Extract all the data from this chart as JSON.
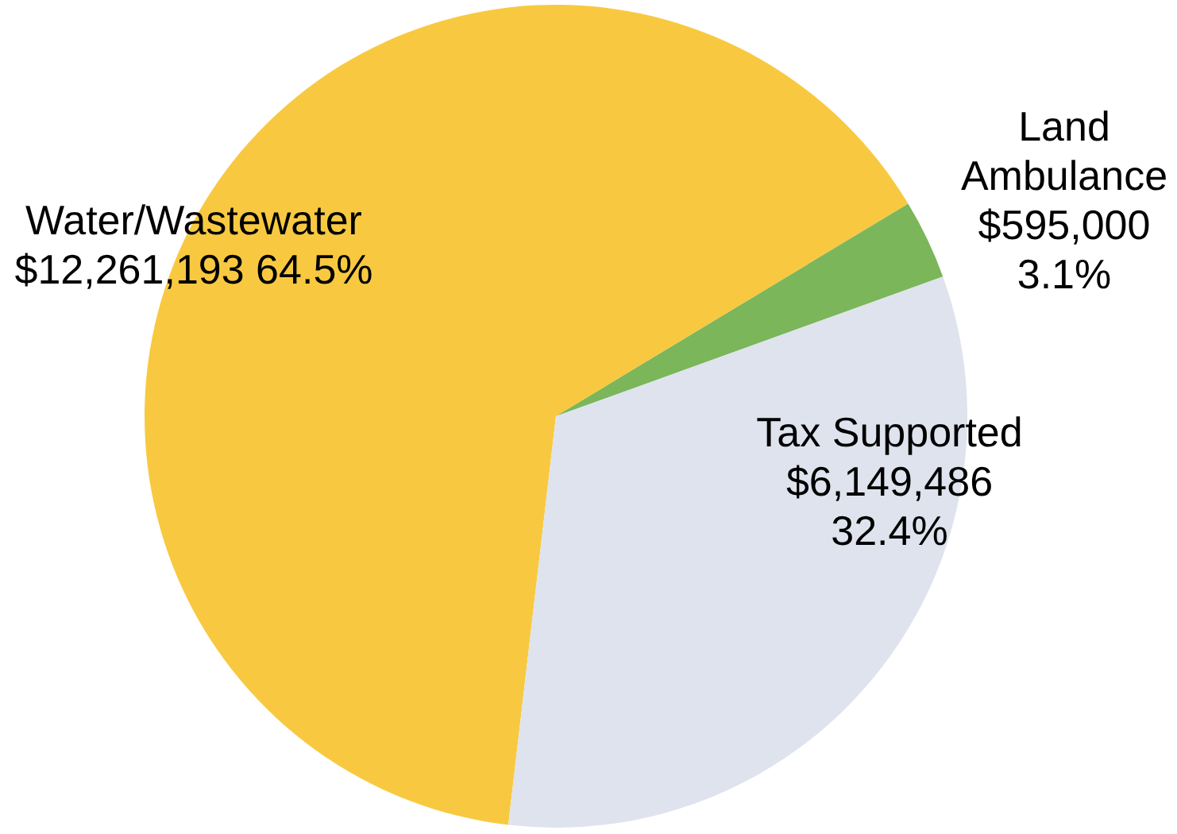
{
  "chart_data": {
    "type": "pie",
    "categories": [
      "Water/Wastewater",
      "Land Ambulance",
      "Tax Supported"
    ],
    "values": [
      12261193,
      595000,
      6149486
    ],
    "colors": [
      "#f8c940",
      "#7bb65a",
      "#dee3ed"
    ],
    "value_labels": [
      "$12,261,193 64.5%",
      "$595,000 3.1%",
      "$6,149,486 32.4%"
    ]
  }
}
